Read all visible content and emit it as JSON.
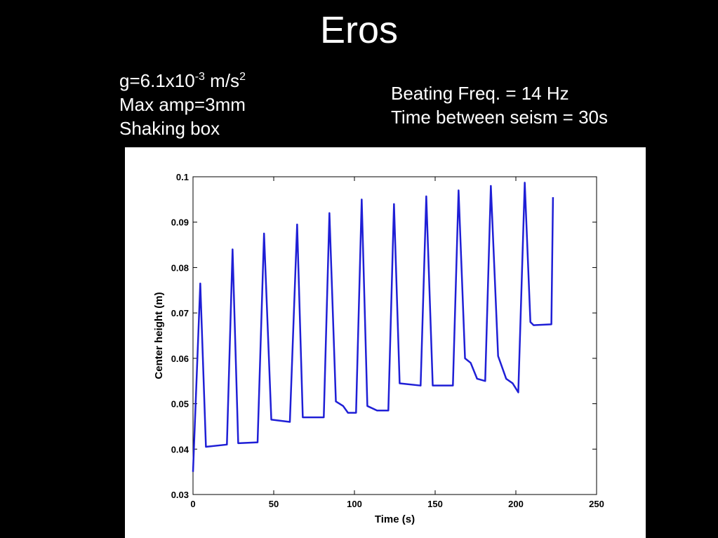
{
  "slide": {
    "title": "Eros",
    "notes_left": [
      [
        {
          "text": "g=6.1x10"
        },
        {
          "text": "-3",
          "sup": true
        },
        {
          "text": " m/s"
        },
        {
          "text": "2",
          "sup": true
        }
      ],
      [
        {
          "text": "Max amp=3mm"
        }
      ],
      [
        {
          "text": "Shaking box"
        }
      ]
    ],
    "notes_right": [
      "Beating Freq. = 14 Hz",
      "Time between seism = 30s"
    ]
  },
  "chart_data": {
    "type": "line",
    "x_label": "Time (s)",
    "y_label": "Center height (m)",
    "xlim": [
      0,
      250
    ],
    "xticks": [
      0,
      50,
      100,
      150,
      200,
      250
    ],
    "ylim": [
      0.03,
      0.1
    ],
    "yticks": [
      0.03,
      0.04,
      0.05,
      0.06,
      0.07,
      0.08,
      0.09,
      0.1
    ],
    "series": [
      {
        "color": "#1f1fd6",
        "x": [
          0,
          4.5,
          8,
          21,
          24.5,
          28,
          40,
          44,
          48.5,
          60,
          64.5,
          68,
          81,
          84.5,
          88.5,
          93,
          96,
          101,
          104.5,
          108,
          114,
          121,
          124.5,
          128,
          141,
          144.5,
          148.5,
          161,
          164.5,
          168.5,
          172,
          176,
          181,
          184.5,
          189,
          194,
          198,
          201.5,
          205.5,
          209,
          211,
          222,
          223
        ],
        "values": [
          0.035,
          0.0765,
          0.0405,
          0.041,
          0.084,
          0.0413,
          0.0415,
          0.0875,
          0.0465,
          0.046,
          0.0895,
          0.047,
          0.047,
          0.092,
          0.0505,
          0.0495,
          0.048,
          0.048,
          0.095,
          0.0495,
          0.0485,
          0.0485,
          0.094,
          0.0545,
          0.054,
          0.0957,
          0.054,
          0.054,
          0.097,
          0.06,
          0.059,
          0.0555,
          0.055,
          0.098,
          0.0605,
          0.0555,
          0.0545,
          0.0525,
          0.0987,
          0.068,
          0.0673,
          0.0675,
          0.0955
        ]
      }
    ]
  }
}
